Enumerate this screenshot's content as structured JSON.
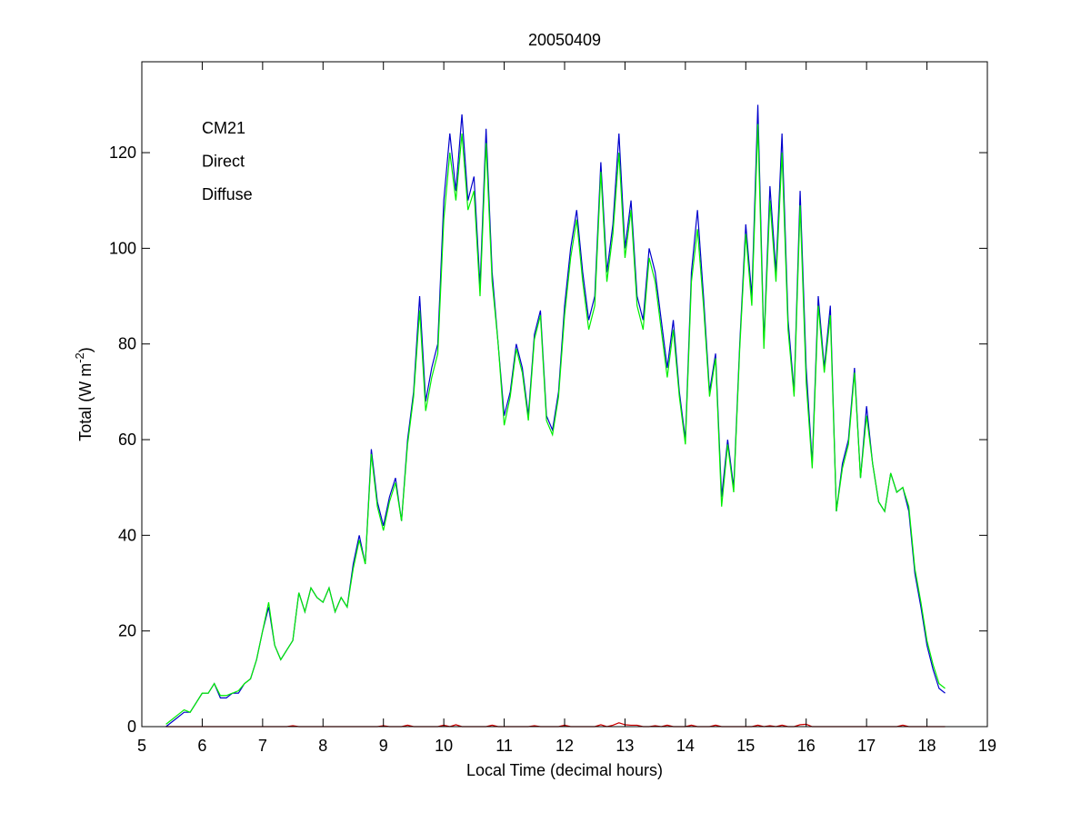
{
  "chart_data": {
    "type": "line",
    "title": "20050409",
    "x_label": "Local Time (decimal hours)",
    "y_label": [
      "Total (W m",
      "-2",
      ")"
    ],
    "xlim": [
      5,
      19
    ],
    "xticks": [
      5,
      6,
      7,
      8,
      9,
      10,
      11,
      12,
      13,
      14,
      15,
      16,
      17,
      18,
      19
    ],
    "ylim": [
      0,
      139
    ],
    "yticks": [
      0,
      20,
      40,
      60,
      80,
      100,
      120
    ],
    "legend_position": "upper left",
    "x": [
      5.4,
      5.5,
      5.6,
      5.7,
      5.8,
      5.9,
      6.0,
      6.1,
      6.2,
      6.3,
      6.4,
      6.5,
      6.6,
      6.7,
      6.8,
      6.9,
      7.0,
      7.1,
      7.2,
      7.3,
      7.4,
      7.5,
      7.6,
      7.7,
      7.8,
      7.9,
      8.0,
      8.1,
      8.2,
      8.3,
      8.4,
      8.5,
      8.6,
      8.7,
      8.8,
      8.9,
      9.0,
      9.1,
      9.2,
      9.3,
      9.4,
      9.5,
      9.6,
      9.7,
      9.8,
      9.9,
      10.0,
      10.1,
      10.2,
      10.3,
      10.4,
      10.5,
      10.6,
      10.7,
      10.8,
      10.9,
      11.0,
      11.1,
      11.2,
      11.3,
      11.4,
      11.5,
      11.6,
      11.7,
      11.8,
      11.9,
      12.0,
      12.1,
      12.2,
      12.3,
      12.4,
      12.5,
      12.6,
      12.7,
      12.8,
      12.9,
      13.0,
      13.1,
      13.2,
      13.3,
      13.4,
      13.5,
      13.6,
      13.7,
      13.8,
      13.9,
      14.0,
      14.1,
      14.2,
      14.3,
      14.4,
      14.5,
      14.6,
      14.7,
      14.8,
      14.9,
      15.0,
      15.1,
      15.2,
      15.3,
      15.4,
      15.5,
      15.6,
      15.7,
      15.8,
      15.9,
      16.0,
      16.1,
      16.2,
      16.3,
      16.4,
      16.5,
      16.6,
      16.7,
      16.8,
      16.9,
      17.0,
      17.1,
      17.2,
      17.3,
      17.4,
      17.5,
      17.6,
      17.7,
      17.8,
      17.9,
      18.0,
      18.1,
      18.2,
      18.3
    ],
    "series": [
      {
        "name": "CM21",
        "color": "#0000cc",
        "values": [
          0,
          1,
          2,
          3,
          3,
          5,
          7,
          7,
          9,
          6,
          6,
          7,
          7,
          9,
          10,
          14,
          20,
          25,
          17,
          14,
          16,
          18,
          28,
          24,
          29,
          27,
          26,
          29,
          24,
          27,
          25,
          34,
          40,
          34,
          58,
          47,
          42,
          48,
          52,
          43,
          60,
          70,
          90,
          68,
          75,
          80,
          110,
          124,
          112,
          128,
          110,
          115,
          92,
          125,
          95,
          80,
          65,
          70,
          80,
          75,
          65,
          82,
          87,
          65,
          62,
          70,
          88,
          100,
          108,
          95,
          85,
          90,
          118,
          95,
          105,
          124,
          100,
          110,
          90,
          85,
          100,
          95,
          85,
          75,
          85,
          70,
          60,
          95,
          108,
          90,
          70,
          78,
          48,
          60,
          50,
          80,
          105,
          90,
          130,
          80,
          113,
          95,
          124,
          85,
          70,
          112,
          75,
          55,
          90,
          75,
          88,
          45,
          55,
          60,
          75,
          52,
          67,
          55,
          47,
          45,
          53,
          49,
          50,
          45,
          32,
          25,
          17,
          12,
          8,
          7
        ]
      },
      {
        "name": "Direct",
        "color": "#cc0000",
        "values": [
          0,
          0,
          0,
          0,
          0,
          0,
          0,
          0,
          0,
          0,
          0,
          0,
          0,
          0,
          0,
          0,
          0,
          0,
          0,
          0,
          0,
          0.2,
          0,
          0,
          0,
          0,
          0,
          0,
          0,
          0,
          0,
          0,
          0,
          0,
          0,
          0,
          0.2,
          0,
          0,
          0,
          0.3,
          0,
          0,
          0,
          0,
          0,
          0.3,
          0,
          0.4,
          0,
          0,
          0,
          0,
          0,
          0.3,
          0,
          0,
          0,
          0,
          0,
          0,
          0.2,
          0,
          0,
          0,
          0,
          0.3,
          0,
          0,
          0,
          0,
          0,
          0.4,
          0,
          0.3,
          0.8,
          0.4,
          0.3,
          0.3,
          0,
          0,
          0.2,
          0,
          0.3,
          0,
          0,
          0,
          0.3,
          0,
          0,
          0,
          0.3,
          0,
          0,
          0,
          0,
          0,
          0,
          0.3,
          0,
          0.2,
          0,
          0.3,
          0,
          0,
          0.4,
          0.5,
          0,
          0,
          0,
          0,
          0,
          0,
          0,
          0,
          0,
          0,
          0,
          0,
          0,
          0,
          0,
          0.3,
          0,
          0,
          0,
          0,
          0,
          0,
          0
        ]
      },
      {
        "name": "Diffuse",
        "color": "#00ee00",
        "values": [
          0.5,
          1.5,
          2.5,
          3.5,
          3,
          5,
          7,
          7,
          9,
          6.5,
          6.5,
          7,
          7.5,
          9,
          10,
          14,
          20,
          26,
          17,
          14,
          16,
          18,
          28,
          24,
          29,
          27,
          26,
          29,
          24,
          27,
          25,
          33,
          39,
          34,
          57,
          46,
          41,
          47,
          51,
          43,
          59,
          69,
          87,
          66,
          73,
          78,
          106,
          120,
          110,
          124,
          108,
          112,
          90,
          122,
          93,
          80,
          63,
          69,
          79,
          74,
          64,
          81,
          86,
          64,
          61,
          69,
          86,
          98,
          106,
          93,
          83,
          88,
          116,
          93,
          103,
          120,
          98,
          108,
          88,
          83,
          98,
          93,
          83,
          73,
          83,
          69,
          59,
          93,
          104,
          88,
          69,
          77,
          46,
          59,
          49,
          79,
          103,
          88,
          126,
          79,
          110,
          93,
          120,
          83,
          69,
          109,
          72,
          54,
          88,
          74,
          86,
          45,
          54,
          59,
          74,
          52,
          65,
          55,
          47,
          45,
          53,
          49,
          50,
          46,
          33,
          26,
          18,
          13,
          9,
          8
        ]
      }
    ]
  }
}
